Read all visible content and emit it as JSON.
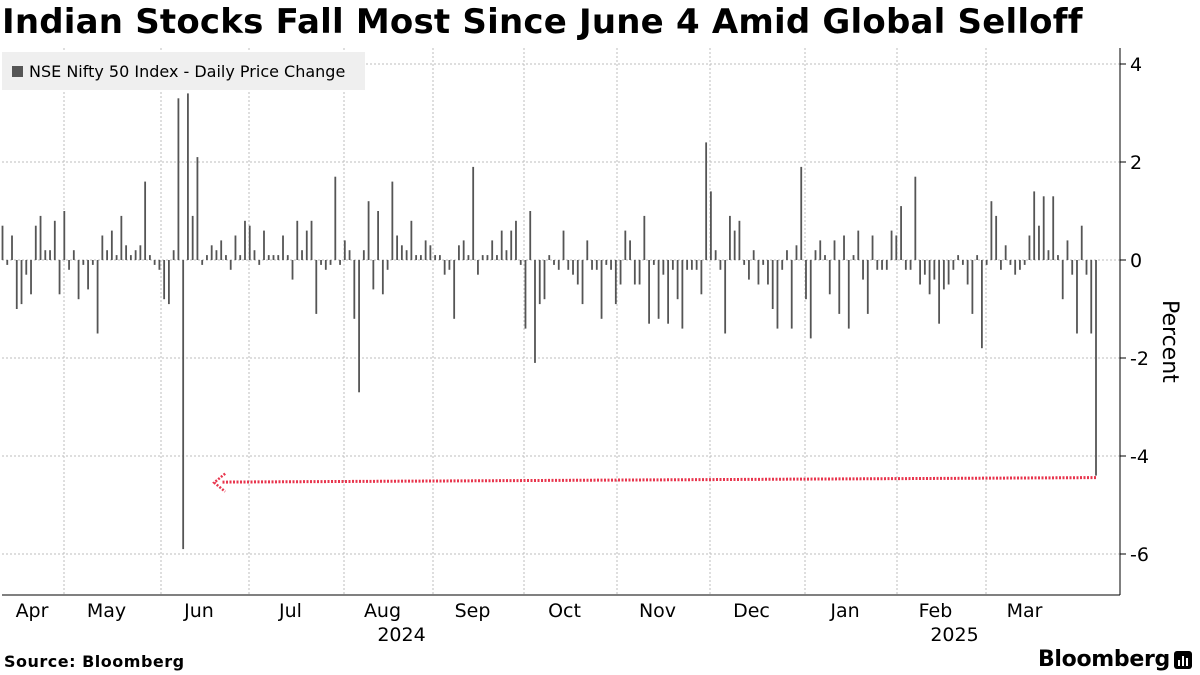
{
  "chart_data": {
    "type": "bar",
    "title": "Indian Stocks Fall Most Since June 4 Amid Global Selloff",
    "legend": "NSE Nifty 50 Index - Daily Price Change",
    "ylabel": "Percent",
    "ylim": [
      -6.9,
      4.2
    ],
    "yticks": [
      4,
      2,
      0,
      -2,
      -4,
      -6
    ],
    "months": [
      "Apr",
      "May",
      "Jun",
      "Jul",
      "Aug",
      "Sep",
      "Oct",
      "Nov",
      "Dec",
      "Jan",
      "Feb",
      "Mar"
    ],
    "years": [
      {
        "label": "2024",
        "month": "Aug"
      },
      {
        "label": "2025",
        "month": "Feb"
      }
    ],
    "values": [
      0.7,
      -0.1,
      0.5,
      -1.0,
      -0.9,
      -0.3,
      -0.7,
      0.7,
      0.9,
      0.2,
      0.2,
      0.8,
      -0.7,
      1.0,
      -0.2,
      0.2,
      -0.8,
      -0.1,
      -0.6,
      -0.1,
      -1.5,
      0.5,
      0.2,
      0.6,
      0.1,
      0.9,
      0.3,
      0.1,
      0.2,
      0.3,
      1.6,
      0.1,
      -0.1,
      -0.2,
      -0.8,
      -0.9,
      0.2,
      3.3,
      -5.9,
      3.4,
      0.9,
      2.1,
      -0.1,
      0.1,
      0.3,
      0.2,
      0.4,
      0.1,
      -0.2,
      0.5,
      0.1,
      0.8,
      0.7,
      0.2,
      -0.1,
      0.6,
      0.1,
      0.1,
      0.1,
      0.5,
      0.1,
      -0.4,
      0.8,
      0.2,
      0.6,
      0.8,
      -1.1,
      -0.1,
      -0.2,
      -0.1,
      1.7,
      -0.1,
      0.4,
      0.2,
      -1.2,
      -2.7,
      0.2,
      1.2,
      -0.6,
      1.0,
      -0.7,
      -0.2,
      1.6,
      0.5,
      0.3,
      0.2,
      0.8,
      0.1,
      0.1,
      0.4,
      0.3,
      0.1,
      0.1,
      -0.3,
      -0.2,
      -1.2,
      0.3,
      0.4,
      0.1,
      1.9,
      -0.3,
      0.1,
      0.1,
      0.4,
      0.1,
      0.6,
      0.2,
      0.6,
      0.8,
      -0.1,
      -1.4,
      1.0,
      -2.1,
      -0.9,
      -0.8,
      0.1,
      -0.1,
      -0.2,
      0.6,
      -0.2,
      -0.3,
      -0.5,
      -0.9,
      0.4,
      -0.2,
      -0.2,
      -1.2,
      -0.1,
      -0.2,
      -0.9,
      -0.5,
      0.6,
      0.4,
      -0.5,
      -0.5,
      0.9,
      -1.3,
      -0.1,
      -1.2,
      -0.3,
      -1.3,
      -0.2,
      -0.8,
      -1.4,
      -0.2,
      -0.2,
      -0.2,
      -0.7,
      2.4,
      1.4,
      0.2,
      -0.2,
      -1.5,
      0.9,
      0.6,
      0.8,
      -0.1,
      -0.4,
      0.2,
      -0.5,
      -0.1,
      -0.5,
      -1.0,
      -1.4,
      -0.2,
      0.2,
      -1.4,
      0.3,
      1.9,
      -0.8,
      -1.6,
      0.2,
      0.4,
      0.1,
      -0.7,
      0.4,
      -1.1,
      0.5,
      -1.4,
      0.1,
      0.6,
      -0.4,
      -1.1,
      0.5,
      -0.2,
      -0.2,
      -0.2,
      0.6,
      0.5,
      1.1,
      -0.2,
      -0.2,
      1.7,
      -0.5,
      -0.3,
      -0.7,
      -0.4,
      -1.3,
      -0.6,
      -0.5,
      -0.2,
      0.1,
      -0.1,
      -0.5,
      -1.1,
      0.1,
      -1.8,
      -0.1,
      1.2,
      0.9,
      -0.2,
      0.3,
      -0.1,
      -0.3,
      -0.2,
      -0.1,
      0.5,
      1.4,
      0.7,
      1.3,
      0.2,
      1.3,
      0.1,
      -0.8,
      0.4,
      -0.3,
      -1.5,
      0.7,
      -0.3,
      -1.5,
      -4.4
    ],
    "annotation": {
      "type": "arrow",
      "from_value": -4.4,
      "to_bar_index": 38
    }
  },
  "footer": {
    "source": "Source: Bloomberg",
    "brand": "Bloomberg"
  },
  "colors": {
    "bar": "#555555",
    "arrow": "#e8354d",
    "grid": "#bdbdbd"
  }
}
